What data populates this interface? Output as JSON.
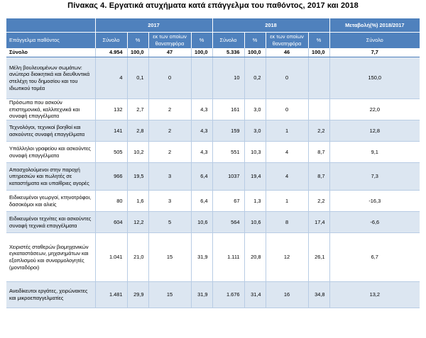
{
  "title": "Πίνακας 4. Εργατικά ατυχήματα κατά επάγγελμα του παθόντος, 2017 και 2018",
  "header": {
    "year_2017": "2017",
    "year_2018": "2018",
    "change": "Μεταβολή(%) 2018/2017",
    "occupation": "Επάγγελμα παθόντος",
    "total": "Σύνολο",
    "pct": "%",
    "fatal": "εκ των οποίων θανατηφόρα",
    "change_total": "Σύνολο"
  },
  "rows": [
    {
      "name": "Σύνολο",
      "t17": "4.954",
      "p17": "100,0",
      "f17": "47",
      "fp17": "100,0",
      "t18": "5.336",
      "p18": "100,0",
      "f18": "46",
      "fp18": "100,0",
      "chg": "7,7"
    },
    {
      "name": "Μέλη βουλευομένων σωμάτων: ανώτερα διοικητικά και διευθυντικά στελέχη του δημοσίου και του ιδιωτικού τομέα",
      "t17": "4",
      "p17": "0,1",
      "f17": "0",
      "fp17": "",
      "t18": "10",
      "p18": "0,2",
      "f18": "0",
      "fp18": "",
      "chg": "150,0"
    },
    {
      "name": "Πρόσωπα που ασκούν επιστημονικά, καλλιτεχνικά και συναφή επαγγέλματα",
      "t17": "132",
      "p17": "2,7",
      "f17": "2",
      "fp17": "4,3",
      "t18": "161",
      "p18": "3,0",
      "f18": "0",
      "fp18": "",
      "chg": "22,0"
    },
    {
      "name": "Τεχνολόγοι, τεχνικοί βοηθοί και ασκούντες συναφή επαγγέλματα",
      "t17": "141",
      "p17": "2,8",
      "f17": "2",
      "fp17": "4,3",
      "t18": "159",
      "p18": "3,0",
      "f18": "1",
      "fp18": "2,2",
      "chg": "12,8"
    },
    {
      "name": "Υπάλληλοι γραφείου και ασκούντες συναφή επαγγέλματα",
      "t17": "505",
      "p17": "10,2",
      "f17": "2",
      "fp17": "4,3",
      "t18": "551",
      "p18": "10,3",
      "f18": "4",
      "fp18": "8,7",
      "chg": "9,1"
    },
    {
      "name": "Απασχολούμενοι στην παροχή υπηρεσιών και πωλητές σε καταστήματα και υπαίθριες αγορές",
      "t17": "966",
      "p17": "19,5",
      "f17": "3",
      "fp17": "6,4",
      "t18": "1037",
      "p18": "19,4",
      "f18": "4",
      "fp18": "8,7",
      "chg": "7,3"
    },
    {
      "name": "Ειδικευμένοι γεωργοί, κτηνοτρόφοι, δασοκόμοι και αλιείς",
      "t17": "80",
      "p17": "1,6",
      "f17": "3",
      "fp17": "6,4",
      "t18": "67",
      "p18": "1,3",
      "f18": "1",
      "fp18": "2,2",
      "chg": "-16,3"
    },
    {
      "name": "Ειδικευμένοι τεχνίτες και ασκούντες συναφή τεχνικά επαγγέλματα",
      "t17": "604",
      "p17": "12,2",
      "f17": "5",
      "fp17": "10,6",
      "t18": "564",
      "p18": "10,6",
      "f18": "8",
      "fp18": "17,4",
      "chg": "-6,6"
    },
    {
      "name": "Χειριστές σταθερών βιομηχανικών εγκαταστάσεων, μηχανημάτων και εξοπλισμού και συναρμολογητές (μονταδόροι)",
      "t17": "1.041",
      "p17": "21,0",
      "f17": "15",
      "fp17": "31,9",
      "t18": "1.111",
      "p18": "20,8",
      "f18": "12",
      "fp18": "26,1",
      "chg": "6,7"
    },
    {
      "name": "Ανειδίκευτοι εργάτες, χειρώνακτες και μικροεπαγγελματίες",
      "t17": "1.481",
      "p17": "29,9",
      "f17": "15",
      "fp17": "31,9",
      "t18": "1.676",
      "p18": "31,4",
      "f18": "16",
      "fp18": "34,8",
      "chg": "13,2"
    }
  ]
}
